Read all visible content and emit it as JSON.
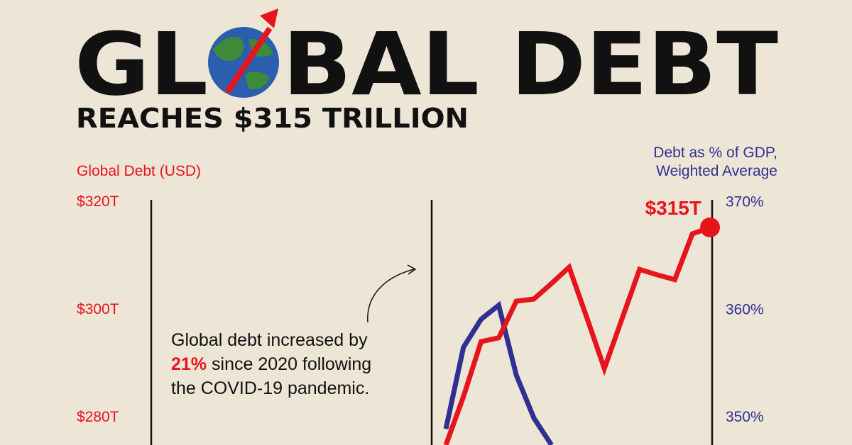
{
  "chart_data": {
    "type": "line",
    "title_left": "GL",
    "title_right": "BAL DEBT",
    "subtitle": "REACHES $315 TRILLION",
    "y_label": "Global Debt (USD)",
    "y2_label": [
      "Debt as % of GDP,",
      "Weighted Average"
    ],
    "annotation": [
      "Global debt increased by",
      "21%",
      "since 2020 following",
      "the COVID-19 pandemic."
    ],
    "categories": [
      null,
      null,
      null,
      null,
      null,
      null,
      null,
      null,
      null,
      null,
      null,
      null,
      null,
      null,
      null,
      null
    ],
    "series": [
      {
        "name": "Global Debt (USD)",
        "color": "#e8141b",
        "axis": "y",
        "values": [
          274.6,
          283.6,
          293.8,
          294.5,
          301.3,
          301.7,
          304.6,
          307.6,
          298.3,
          288.8,
          298.0,
          307.2,
          306.2,
          305.3,
          313.8,
          315
        ],
        "value_labels": [
          null,
          null,
          null,
          null,
          null,
          null,
          null,
          null,
          null,
          null,
          null,
          null,
          null,
          null,
          null,
          "$315T"
        ]
      },
      {
        "name": "Debt as % of GDP, Weighted Average",
        "color": "#2e3192",
        "axis": "y2",
        "values": [
          348.8,
          356.4,
          359.0,
          360.3,
          353.8,
          349.8,
          347.3,
          null,
          null,
          null,
          null,
          null,
          null,
          null,
          null,
          null
        ]
      }
    ],
    "ylim": [
      274.6,
      321.7
    ],
    "yticks": [
      {
        "value": 280,
        "label": "$280T"
      },
      {
        "value": 300,
        "label": "$300T"
      },
      {
        "value": 320,
        "label": "$320T"
      }
    ],
    "y2lim": [
      347.3,
      370.9
    ],
    "y2ticks": [
      {
        "value": 350,
        "label": "350%"
      },
      {
        "value": 360,
        "label": "360%"
      },
      {
        "value": 370,
        "label": "370%"
      }
    ]
  }
}
